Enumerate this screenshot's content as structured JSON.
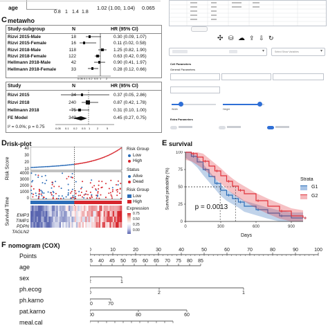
{
  "panel_c": {
    "letter": "C",
    "title": "metawho",
    "top_row": {
      "label": "age",
      "hr": "1.02 (1.00, 1.04)",
      "p": "0.065",
      "axis_ticks": [
        "0.8",
        "1",
        "1.4",
        "1.8"
      ]
    },
    "table1": {
      "headers": [
        "Study-subgroup",
        "N",
        "HR (95% CI)"
      ],
      "rows": [
        {
          "study": "Rizvi 2015-Male",
          "n": "18",
          "hr": "0.30 (0.09, 1.07)"
        },
        {
          "study": "Rizvi 2015-Female",
          "n": "16",
          "hr": "0.11 (0.02, 0.58)"
        },
        {
          "study": "Rizvi 2018-Male",
          "n": "118",
          "hr": "1.25 (0.82, 1.90)"
        },
        {
          "study": "Rizvi 2018-Female",
          "n": "122",
          "hr": "0.63 (0.42, 0.95)"
        },
        {
          "study": "Hellmann 2018-Male",
          "n": "42",
          "hr": "0.90 (0.41, 1.97)"
        },
        {
          "study": "Hellmann 2018-Female",
          "n": "33",
          "hr": "0.28 (0.12, 0.66)"
        }
      ],
      "axis_ticks": [
        "0.05",
        "0.1",
        "0.2",
        "0.5",
        "1",
        "2"
      ]
    },
    "table2": {
      "headers": [
        "Study",
        "N",
        "HR (95% CI)"
      ],
      "rows": [
        {
          "study": "Rizvi 2015",
          "n": "34",
          "hr": "0.37 (0.05, 2.86)"
        },
        {
          "study": "Rizvi 2018",
          "n": "240",
          "hr": "0.87 (0.42, 1.78)"
        },
        {
          "study": "Hellmann 2018",
          "n": "75",
          "hr": "0.31 (0.10, 1.00)"
        },
        {
          "study": "FE Model",
          "n": "349",
          "hr": "0.45 (0.27, 0.75)"
        }
      ],
      "heterogeneity": "I² = 0.0%; p = 0.75",
      "axis_ticks": [
        "0.05",
        "0.1",
        "0.2",
        "0.5",
        "1",
        "2",
        "5"
      ]
    }
  },
  "app_panel": {
    "select_placeholder": "Select Show Variables",
    "section_cell": "Cell Parameters",
    "section_general": "General Parameters",
    "section_extra": "Extra Parameters",
    "field_width": "Width",
    "field_height": "Height",
    "field_font": "Font Size",
    "colors": {
      "accent": "#2f6fd6"
    }
  },
  "panel_d": {
    "letter": "D",
    "title": "risk-plot",
    "ylabels": {
      "risk": "Risk Score",
      "survival": "Survival Time"
    },
    "risk_ticks": [
      "10",
      "20",
      "30",
      "40"
    ],
    "survival_ticks": [
      "0",
      "1000",
      "2000",
      "3000",
      "4000"
    ],
    "genes": [
      "EMP3",
      "TIMP1",
      "PDPN",
      "TAGLN2"
    ],
    "legend": {
      "risk_group_title": "Risk Group",
      "low": "Low",
      "high": "High",
      "status_title": "Status",
      "alive": "Alive",
      "dead": "Dead",
      "risk_group_title2": "Risk Group",
      "low2": "Low",
      "high2": "High",
      "expression_title": "Expression",
      "expr_ticks": [
        "0.75",
        "0.50",
        "0.25",
        "0.00"
      ]
    },
    "colors": {
      "low": "#2c6db8",
      "high": "#d7262d"
    }
  },
  "panel_e": {
    "letter": "E",
    "title": "survival",
    "pvalue": "p = 0.0013",
    "legend_title": "Strata",
    "strata": [
      "G1",
      "G2"
    ],
    "colors": {
      "G1": "#2d6eb8",
      "G2": "#e0323a"
    }
  },
  "chart_data": {
    "type": "line",
    "xlabel": "Days",
    "ylabel": "Survival probability (%)",
    "xlim": [
      0,
      1000
    ],
    "ylim": [
      0,
      100
    ],
    "x_ticks": [
      "0",
      "300",
      "600",
      "900"
    ],
    "y_ticks": [
      "0",
      "25",
      "50",
      "75",
      "100"
    ],
    "series": [
      {
        "name": "G1",
        "x": [
          0,
          50,
          100,
          150,
          200,
          250,
          300,
          350,
          400,
          450,
          500,
          600,
          700,
          800,
          900,
          1000
        ],
        "y": [
          100,
          94,
          86,
          75,
          65,
          55,
          45,
          38,
          33,
          28,
          22,
          17,
          12,
          8,
          5,
          5
        ]
      },
      {
        "name": "G2",
        "x": [
          0,
          50,
          100,
          150,
          200,
          250,
          300,
          350,
          400,
          450,
          500,
          600,
          700,
          800,
          900,
          1000
        ],
        "y": [
          100,
          98,
          93,
          87,
          80,
          73,
          66,
          58,
          51,
          45,
          40,
          30,
          22,
          15,
          8,
          5
        ]
      }
    ],
    "median_lines": [
      {
        "x": 295,
        "y": 50
      },
      {
        "x": 425,
        "y": 50
      }
    ],
    "legend": "right"
  },
  "panel_f": {
    "letter": "F",
    "title": "nomogram (COX)",
    "rows": [
      "Points",
      "age",
      "sex",
      "ph.ecog",
      "ph.karno",
      "pat.karno",
      "meal.cal"
    ],
    "points_ticks": [
      "0",
      "10",
      "20",
      "30",
      "40",
      "50",
      "60",
      "70",
      "80",
      "90",
      "100"
    ],
    "age_ticks": [
      "35",
      "40",
      "45",
      "50",
      "55",
      "60",
      "65",
      "70",
      "75",
      "80",
      "85"
    ],
    "sex_ticks": [
      "2",
      "1"
    ],
    "ecog_ticks": [
      "0",
      "2",
      "1"
    ],
    "karno_ticks": [
      "90",
      "70"
    ],
    "patkarno_ticks": [
      "100",
      "80",
      "60"
    ]
  }
}
